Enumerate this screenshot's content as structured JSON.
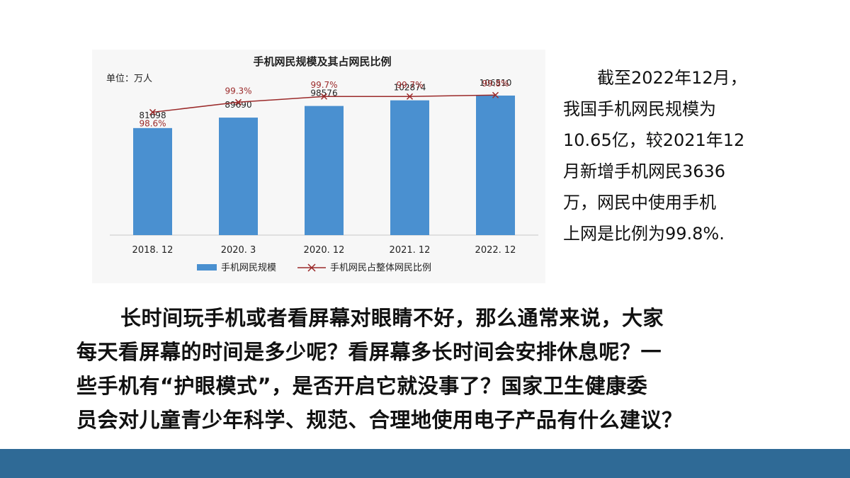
{
  "chart_data": {
    "type": "bar",
    "title": "手机网民规模及其占网民比例",
    "unit_label": "单位：万人",
    "categories": [
      "2018. 12",
      "2020. 3",
      "2020. 12",
      "2021. 12",
      "2022. 12"
    ],
    "series": [
      {
        "name": "手机网民规模",
        "kind": "bar",
        "values": [
          81698,
          89690,
          98576,
          102874,
          106510
        ],
        "labels": [
          "81698",
          "89690",
          "98576",
          "102874",
          "106510"
        ],
        "color": "#4a90d0"
      },
      {
        "name": "手机网民占整体网民比例",
        "kind": "line",
        "values": [
          98.6,
          99.3,
          99.7,
          99.7,
          99.8
        ],
        "labels": [
          "98.6%",
          "99.3%",
          "99.7%",
          "99.7%",
          "99.8%"
        ],
        "color": "#9b2a2a"
      }
    ],
    "legend_position": "bottom",
    "ylim_bars": [
      0,
      120000
    ],
    "ylim_line": [
      90,
      101
    ],
    "grid": false
  },
  "side_text": [
    "截至2022年12月，",
    "我国手机网民规模为",
    "10.65亿，较2021年12",
    "月新增手机网民3636",
    "万，网民中使用手机",
    "上网是比例为99.8%."
  ],
  "main_text": [
    "长时间玩手机或者看屏幕对眼睛不好，那么通常来说，大家",
    "每天看屏幕的时间是多少呢？看屏幕多长时间会安排休息呢？一",
    "些手机有“护眼模式”，是否开启它就没事了？国家卫生健康委",
    "员会对儿童青少年科学、规范、合理地使用电子产品有什么建议？"
  ],
  "colors": {
    "footer": "#2f6a96",
    "bar": "#4a90d0",
    "line": "#9b2a2a"
  }
}
